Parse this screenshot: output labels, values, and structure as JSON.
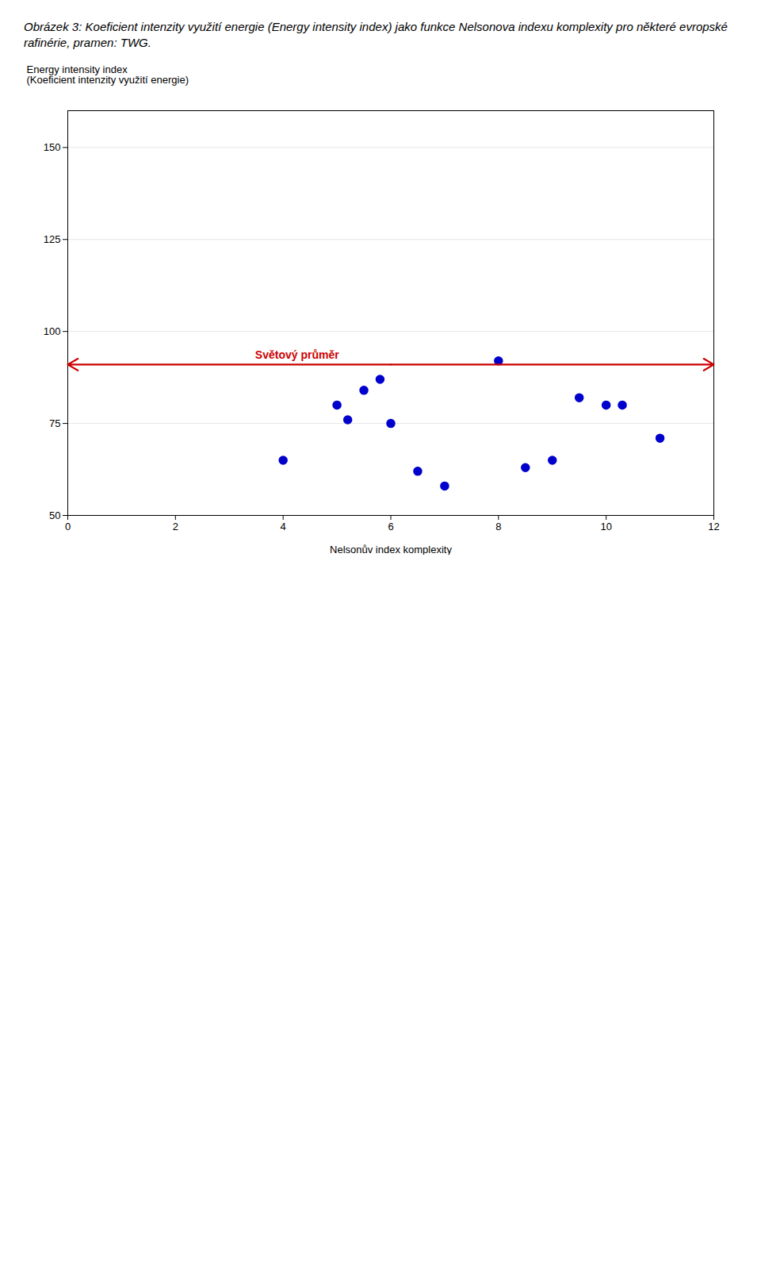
{
  "chart_data": {
    "type": "scatter",
    "title": "Obrázek 3: Koeficient intenzity využití energie (Energy intensity index) jako funkce Nelsonova indexu komplexity pro některé evropské rafinérie, pramen: TWG.",
    "xlabel": "Nelsonův index komplexity",
    "ylabel": "Energy intensity index\n(Koeficient intenzity využití energie)",
    "x": [
      4.0,
      5.0,
      5.2,
      5.5,
      5.8,
      6.0,
      6.5,
      7.0,
      8.0,
      8.5,
      9.0,
      9.5,
      10.0,
      10.3,
      11.0
    ],
    "values": [
      65,
      80,
      76,
      84,
      87,
      75,
      62,
      58,
      92,
      63,
      65,
      82,
      80,
      80,
      71
    ],
    "color": "#0000CC",
    "marker": "circle",
    "xlim": [
      0,
      12
    ],
    "ylim": [
      50,
      160
    ],
    "xticks": [
      0,
      2,
      4,
      6,
      8,
      10,
      12
    ],
    "yticks": [
      50,
      75,
      100,
      125,
      150
    ],
    "grid": true,
    "annotations": [
      {
        "type": "hline",
        "y": 91,
        "text": "Světový průměr",
        "color": "#CC0000"
      }
    ]
  }
}
